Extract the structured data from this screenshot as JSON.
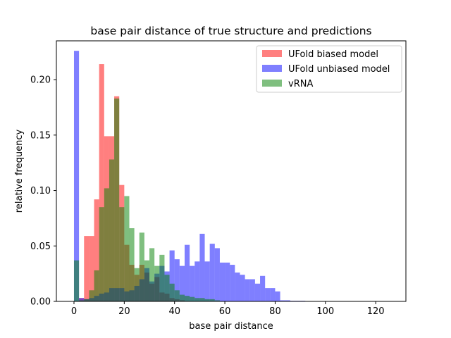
{
  "chart_data": {
    "type": "bar",
    "title": "base pair distance of true structure and predictions",
    "xlabel": "base pair distance",
    "ylabel": "relative frequency",
    "xlim": [
      -7,
      132
    ],
    "ylim": [
      0,
      0.235
    ],
    "xticks": [
      0,
      20,
      40,
      60,
      80,
      100,
      120
    ],
    "yticks": [
      "0.00",
      "0.05",
      "0.10",
      "0.15",
      "0.20"
    ],
    "ytick_values": [
      0,
      0.05,
      0.1,
      0.15,
      0.2
    ],
    "legend_position": "upper right",
    "grid": false,
    "series": [
      {
        "name": "UFold biased model",
        "color": "#ff0000",
        "alpha": 0.5,
        "bins": [
          [
            0,
            2,
            0.0
          ],
          [
            2,
            4,
            0.003
          ],
          [
            4,
            6,
            0.059
          ],
          [
            6,
            8,
            0.059
          ],
          [
            8,
            10,
            0.092
          ],
          [
            10,
            12,
            0.214
          ],
          [
            12,
            14,
            0.149
          ],
          [
            14,
            16,
            0.149
          ],
          [
            16,
            18,
            0.185
          ],
          [
            18,
            20,
            0.105
          ],
          [
            20,
            22,
            0.051
          ],
          [
            22,
            24,
            0.033
          ],
          [
            24,
            26,
            0.024
          ],
          [
            26,
            28,
            0.033
          ],
          [
            28,
            30,
            0.026
          ],
          [
            30,
            32,
            0.016
          ],
          [
            32,
            34,
            0.022
          ],
          [
            34,
            36,
            0.008
          ],
          [
            36,
            38,
            0.007
          ],
          [
            38,
            40,
            0.003
          ],
          [
            40,
            42,
            0.002
          ],
          [
            42,
            44,
            0.001
          ]
        ]
      },
      {
        "name": "UFold unbiased model",
        "color": "#0000ff",
        "alpha": 0.5,
        "bins": [
          [
            0,
            2,
            0.226
          ],
          [
            2,
            4,
            0.003
          ],
          [
            4,
            6,
            0.002
          ],
          [
            6,
            8,
            0.003
          ],
          [
            8,
            10,
            0.005
          ],
          [
            10,
            12,
            0.007
          ],
          [
            12,
            14,
            0.008
          ],
          [
            14,
            16,
            0.012
          ],
          [
            16,
            18,
            0.012
          ],
          [
            18,
            20,
            0.012
          ],
          [
            20,
            22,
            0.009
          ],
          [
            22,
            24,
            0.01
          ],
          [
            24,
            26,
            0.014
          ],
          [
            26,
            28,
            0.02
          ],
          [
            28,
            30,
            0.03
          ],
          [
            30,
            32,
            0.018
          ],
          [
            32,
            34,
            0.025
          ],
          [
            34,
            36,
            0.032
          ],
          [
            36,
            38,
            0.027
          ],
          [
            38,
            40,
            0.046
          ],
          [
            40,
            42,
            0.038
          ],
          [
            42,
            44,
            0.032
          ],
          [
            44,
            46,
            0.051
          ],
          [
            46,
            48,
            0.032
          ],
          [
            48,
            50,
            0.036
          ],
          [
            50,
            52,
            0.061
          ],
          [
            52,
            54,
            0.036
          ],
          [
            54,
            56,
            0.052
          ],
          [
            56,
            58,
            0.048
          ],
          [
            58,
            60,
            0.035
          ],
          [
            60,
            62,
            0.035
          ],
          [
            62,
            64,
            0.033
          ],
          [
            64,
            66,
            0.026
          ],
          [
            66,
            68,
            0.024
          ],
          [
            68,
            70,
            0.02
          ],
          [
            70,
            72,
            0.02
          ],
          [
            72,
            74,
            0.016
          ],
          [
            74,
            76,
            0.023
          ],
          [
            76,
            78,
            0.012
          ],
          [
            78,
            80,
            0.012
          ],
          [
            80,
            82,
            0.009
          ],
          [
            82,
            84,
            0.001
          ],
          [
            84,
            86,
            0.001
          ],
          [
            86,
            88,
            0.0005
          ],
          [
            88,
            90,
            0.0005
          ],
          [
            90,
            92,
            0.0005
          ],
          [
            92,
            94,
            0.0003
          ],
          [
            94,
            96,
            0.0003
          ],
          [
            96,
            98,
            0.0003
          ],
          [
            98,
            100,
            0.0003
          ],
          [
            100,
            102,
            0.0003
          ],
          [
            102,
            104,
            0.0003
          ],
          [
            104,
            106,
            0.0003
          ],
          [
            106,
            108,
            0.0003
          ],
          [
            108,
            110,
            0.0003
          ],
          [
            110,
            112,
            0.0003
          ],
          [
            112,
            114,
            0.0002
          ],
          [
            114,
            116,
            0.0002
          ],
          [
            116,
            118,
            0.0002
          ],
          [
            118,
            120,
            0.0002
          ],
          [
            120,
            122,
            0.0002
          ],
          [
            122,
            124,
            0.0002
          ],
          [
            124,
            126,
            0.0002
          ]
        ]
      },
      {
        "name": "vRNA",
        "color": "#008000",
        "alpha": 0.5,
        "bins": [
          [
            0,
            2,
            0.037
          ],
          [
            2,
            4,
            0.001
          ],
          [
            4,
            6,
            0.002
          ],
          [
            6,
            8,
            0.01
          ],
          [
            8,
            10,
            0.028
          ],
          [
            10,
            12,
            0.085
          ],
          [
            12,
            14,
            0.102
          ],
          [
            14,
            16,
            0.128
          ],
          [
            16,
            18,
            0.183
          ],
          [
            18,
            20,
            0.085
          ],
          [
            20,
            22,
            0.095
          ],
          [
            22,
            24,
            0.066
          ],
          [
            24,
            26,
            0.03
          ],
          [
            26,
            28,
            0.062
          ],
          [
            28,
            30,
            0.037
          ],
          [
            30,
            32,
            0.048
          ],
          [
            32,
            34,
            0.032
          ],
          [
            34,
            36,
            0.042
          ],
          [
            36,
            38,
            0.024
          ],
          [
            38,
            40,
            0.016
          ],
          [
            40,
            42,
            0.01
          ],
          [
            42,
            44,
            0.006
          ],
          [
            44,
            46,
            0.005
          ],
          [
            46,
            48,
            0.004
          ],
          [
            48,
            50,
            0.003
          ],
          [
            50,
            52,
            0.003
          ],
          [
            52,
            54,
            0.002
          ],
          [
            54,
            56,
            0.002
          ],
          [
            56,
            58,
            0.001
          ]
        ]
      }
    ]
  }
}
